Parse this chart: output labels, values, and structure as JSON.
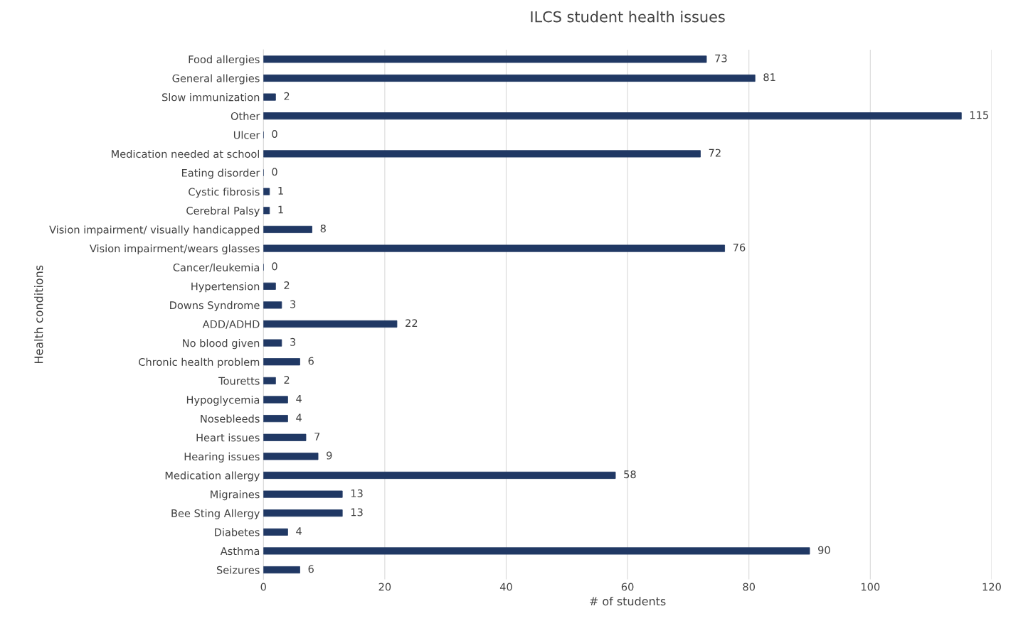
{
  "chart_data": {
    "type": "bar",
    "orientation": "horizontal",
    "title": "ILCS student health issues",
    "xlabel": "# of students",
    "ylabel": "Health conditions",
    "categories": [
      "Food allergies",
      "General allergies",
      "Slow immunization",
      "Other",
      "Ulcer",
      "Medication needed at school",
      "Eating disorder",
      "Cystic fibrosis",
      "Cerebral Palsy",
      "Vision impairment/ visually handicapped",
      "Vision impairment/wears glasses",
      "Cancer/leukemia",
      "Hypertension",
      "Downs Syndrome",
      "ADD/ADHD",
      "No blood given",
      "Chronic health problem",
      "Touretts",
      "Hypoglycemia",
      "Nosebleeds",
      "Heart issues",
      "Hearing issues",
      "Medication allergy",
      "Migraines",
      "Bee Sting Allergy",
      "Diabetes",
      "Asthma",
      "Seizures"
    ],
    "values": [
      73,
      81,
      2,
      115,
      0,
      72,
      0,
      1,
      1,
      8,
      76,
      0,
      2,
      3,
      22,
      3,
      6,
      2,
      4,
      4,
      7,
      9,
      58,
      13,
      13,
      4,
      90,
      6
    ],
    "color": "#203864",
    "xlim": [
      0,
      120
    ],
    "xticks": [
      0,
      20,
      40,
      60,
      80,
      100,
      120
    ],
    "grid": "x",
    "data_labels": true,
    "legend": false
  }
}
